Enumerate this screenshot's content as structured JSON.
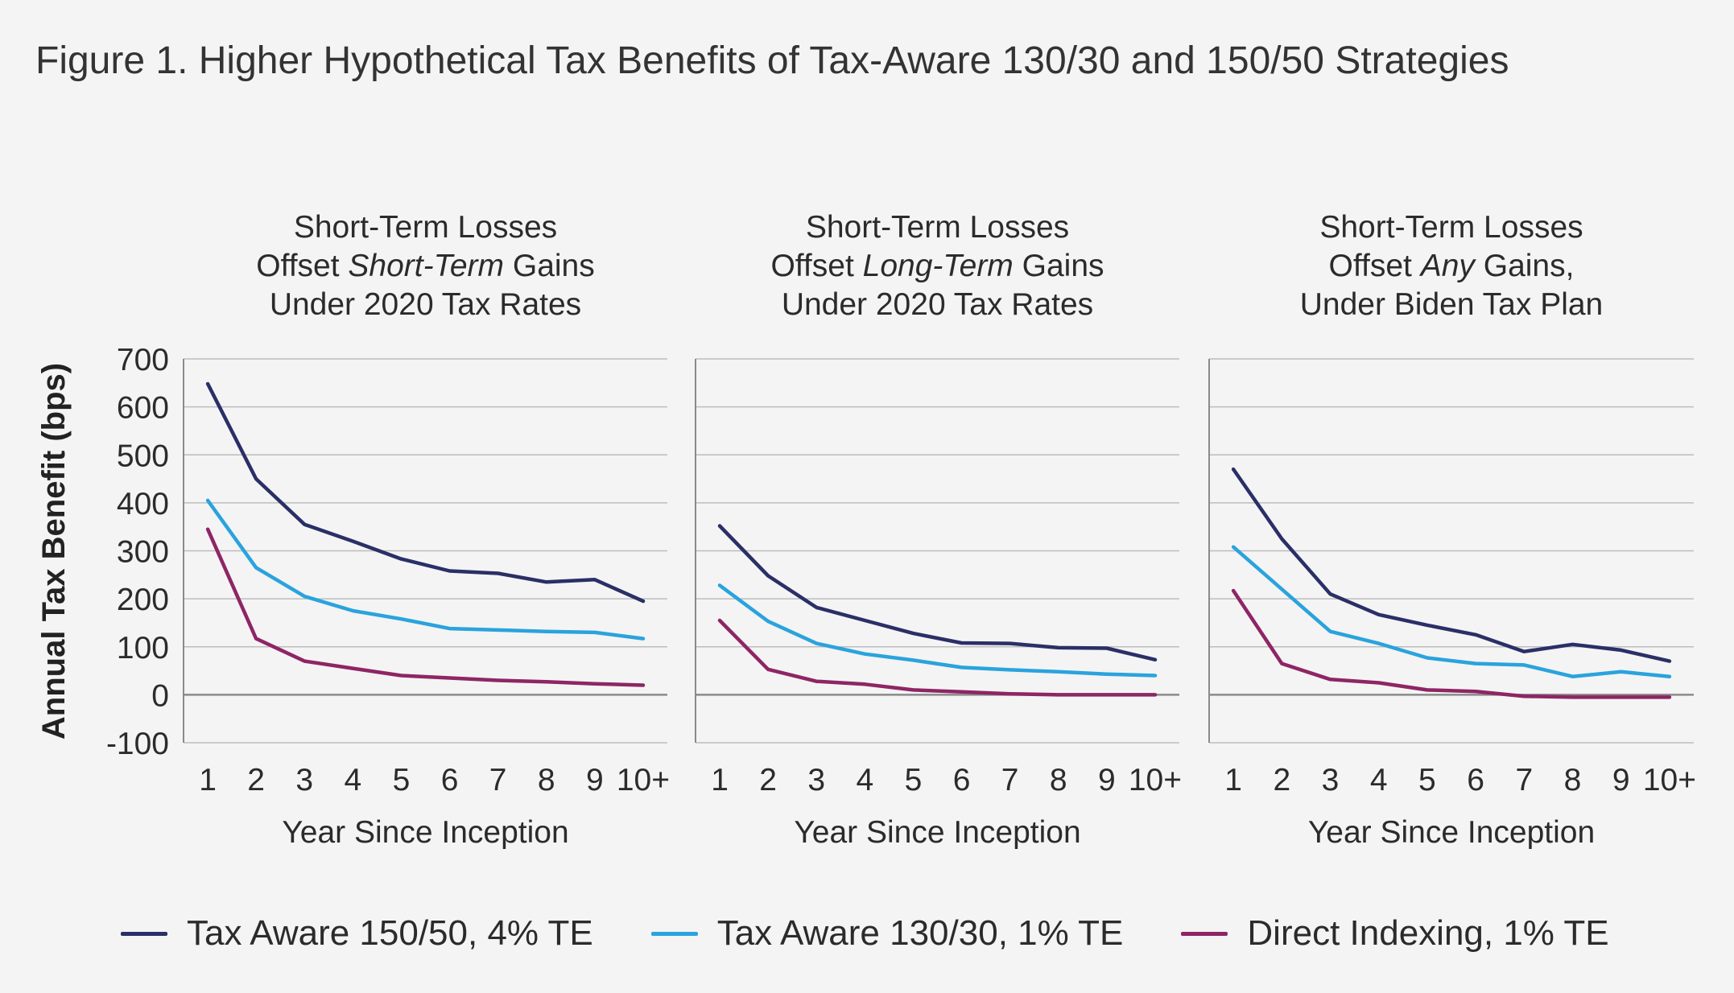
{
  "figure_title": "Figure 1. Higher Hypothetical Tax Benefits of Tax-Aware 130/30 and 150/50 Strategies",
  "ylabel": "Annual Tax Benefit (bps)",
  "xlabel": "Year Since Inception",
  "colors": {
    "tax_aware_150_50": "#2a2f67",
    "tax_aware_130_30": "#2aa3dd",
    "direct_indexing": "#8e2565",
    "grid": "#bdbdbd",
    "axis": "#8a8a8a"
  },
  "legend": [
    {
      "label": "Tax Aware 150/50, 4% TE",
      "color": "#2a2f67"
    },
    {
      "label": "Tax Aware 130/30, 1% TE",
      "color": "#2aa3dd"
    },
    {
      "label": "Direct Indexing, 1% TE",
      "color": "#8e2565"
    }
  ],
  "chart_data": [
    {
      "type": "line",
      "title_lines": [
        [
          {
            "text": "Short-Term Losses",
            "italic": false
          }
        ],
        [
          {
            "text": "Offset ",
            "italic": false
          },
          {
            "text": "Short-Term",
            "italic": true
          },
          {
            "text": " Gains",
            "italic": false
          }
        ],
        [
          {
            "text": "Under 2020 Tax Rates",
            "italic": false
          }
        ]
      ],
      "categories": [
        "1",
        "2",
        "3",
        "4",
        "5",
        "6",
        "7",
        "8",
        "9",
        "10+"
      ],
      "yticks": [
        700,
        600,
        500,
        400,
        300,
        200,
        100,
        0,
        -100
      ],
      "ylim": [
        -100,
        700
      ],
      "xlabel": "Year Since Inception",
      "series": [
        {
          "name": "Tax Aware 150/50, 4% TE",
          "values": [
            648,
            450,
            355,
            320,
            283,
            258,
            253,
            235,
            240,
            195
          ]
        },
        {
          "name": "Tax Aware 130/30, 1% TE",
          "values": [
            405,
            265,
            205,
            175,
            158,
            138,
            135,
            132,
            130,
            117
          ]
        },
        {
          "name": "Direct Indexing, 1% TE",
          "values": [
            345,
            117,
            70,
            55,
            40,
            35,
            30,
            27,
            23,
            20
          ]
        }
      ]
    },
    {
      "type": "line",
      "title_lines": [
        [
          {
            "text": "Short-Term Losses",
            "italic": false
          }
        ],
        [
          {
            "text": "Offset ",
            "italic": false
          },
          {
            "text": "Long-Term",
            "italic": true
          },
          {
            "text": " Gains",
            "italic": false
          }
        ],
        [
          {
            "text": "Under 2020 Tax Rates",
            "italic": false
          }
        ]
      ],
      "categories": [
        "1",
        "2",
        "3",
        "4",
        "5",
        "6",
        "7",
        "8",
        "9",
        "10+"
      ],
      "ylim": [
        -100,
        700
      ],
      "xlabel": "Year Since Inception",
      "series": [
        {
          "name": "Tax Aware 150/50, 4% TE",
          "values": [
            352,
            248,
            182,
            155,
            128,
            108,
            107,
            98,
            97,
            73
          ]
        },
        {
          "name": "Tax Aware 130/30, 1% TE",
          "values": [
            228,
            153,
            107,
            85,
            72,
            57,
            52,
            48,
            43,
            40
          ]
        },
        {
          "name": "Direct Indexing, 1% TE",
          "values": [
            155,
            53,
            28,
            22,
            10,
            6,
            2,
            0,
            0,
            0
          ]
        }
      ]
    },
    {
      "type": "line",
      "title_lines": [
        [
          {
            "text": "Short-Term Losses",
            "italic": false
          }
        ],
        [
          {
            "text": "Offset ",
            "italic": false
          },
          {
            "text": "Any",
            "italic": true
          },
          {
            "text": " Gains,",
            "italic": false
          }
        ],
        [
          {
            "text": "Under Biden Tax Plan",
            "italic": false
          }
        ]
      ],
      "categories": [
        "1",
        "2",
        "3",
        "4",
        "5",
        "6",
        "7",
        "8",
        "9",
        "10+"
      ],
      "ylim": [
        -100,
        700
      ],
      "xlabel": "Year Since Inception",
      "series": [
        {
          "name": "Tax Aware 150/50, 4% TE",
          "values": [
            470,
            325,
            210,
            167,
            145,
            125,
            90,
            105,
            93,
            70
          ]
        },
        {
          "name": "Tax Aware 130/30, 1% TE",
          "values": [
            308,
            220,
            132,
            107,
            77,
            65,
            62,
            38,
            48,
            38
          ]
        },
        {
          "name": "Direct Indexing, 1% TE",
          "values": [
            217,
            65,
            32,
            25,
            10,
            7,
            -3,
            -5,
            -5,
            -5
          ]
        }
      ]
    }
  ]
}
